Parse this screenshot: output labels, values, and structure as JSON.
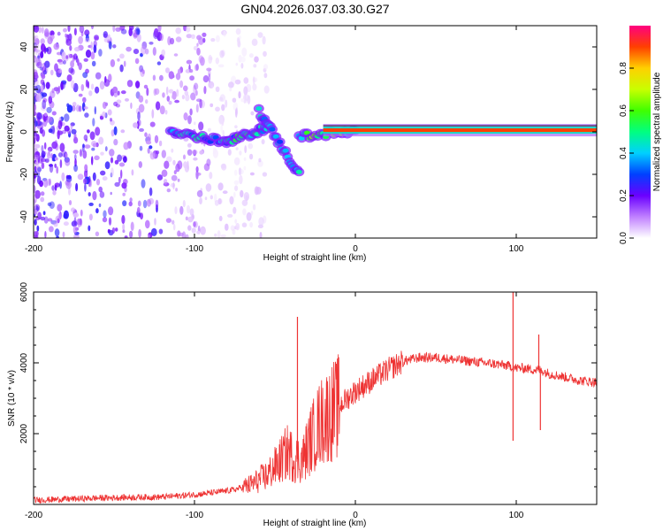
{
  "title": "GN04.2026.037.03.30.G27",
  "chart_data": [
    {
      "type": "heatmap",
      "xlabel": "Height of straight line (km)",
      "ylabel": "Frequency (Hz)",
      "xlim": [
        -200,
        150
      ],
      "ylim": [
        -50,
        50
      ],
      "xticks": [
        -200,
        -100,
        0,
        100
      ],
      "yticks": [
        -40,
        -20,
        0,
        20,
        40
      ],
      "colorbar": {
        "label": "Normalized spectral amplitude",
        "range": [
          0,
          1
        ],
        "ticks": [
          "0.0",
          "0.2",
          "0.4",
          "0.6",
          "0.8"
        ]
      },
      "features": [
        {
          "name": "noise-scatter",
          "x_range": [
            -200,
            -80
          ],
          "freq_range": [
            -50,
            50
          ],
          "amplitude": 0.1
        },
        {
          "name": "ridge-segment",
          "x": [
            -115,
            -80
          ],
          "freq": [
            0,
            -5
          ],
          "amplitude": 0.45
        },
        {
          "name": "ridge-segment",
          "x": [
            -80,
            -55
          ],
          "freq": [
            -5,
            2
          ],
          "amplitude": 0.5
        },
        {
          "name": "branch",
          "x": [
            -60,
            -35
          ],
          "freq": [
            10,
            -20
          ],
          "amplitude": 0.4
        },
        {
          "name": "ridge-segment",
          "x": [
            -35,
            0
          ],
          "freq": [
            -2,
            0
          ],
          "amplitude": 0.6
        },
        {
          "name": "carrier-line",
          "x": [
            -20,
            150
          ],
          "freq": [
            0.8,
            0.8
          ],
          "amplitude": 0.95
        }
      ]
    },
    {
      "type": "line",
      "xlabel": "Height of straight line (km)",
      "ylabel": "SNR (10 * v/v)",
      "xlim": [
        -200,
        150
      ],
      "ylim": [
        0,
        6000
      ],
      "xticks": [
        -200,
        -100,
        0,
        100
      ],
      "yticks": [
        2000,
        4000,
        6000
      ],
      "series": [
        {
          "name": "SNR",
          "color": "#ee3333",
          "x": [
            -200,
            -180,
            -160,
            -140,
            -120,
            -105,
            -95,
            -85,
            -75,
            -65,
            -55,
            -48,
            -42,
            -38,
            -33,
            -28,
            -22,
            -18,
            -12,
            -5,
            0,
            10,
            20,
            30,
            40,
            50,
            60,
            70,
            80,
            90,
            97,
            100,
            105,
            112,
            115,
            120,
            130,
            140,
            150
          ],
          "y": [
            120,
            150,
            180,
            200,
            210,
            260,
            300,
            350,
            420,
            560,
            820,
            1150,
            1500,
            1300,
            1250,
            1800,
            2300,
            2500,
            2700,
            3000,
            3200,
            3500,
            3800,
            4050,
            4150,
            4150,
            4100,
            4050,
            4000,
            3950,
            3900,
            3850,
            3850,
            3800,
            3800,
            3700,
            3600,
            3500,
            3450
          ]
        }
      ],
      "spikes": [
        {
          "x": -36,
          "y": 5300
        },
        {
          "x": 98,
          "y": 6100
        },
        {
          "x": 114,
          "y": 4800
        },
        {
          "x": 98,
          "y": 1800
        },
        {
          "x": 115,
          "y": 2100
        }
      ]
    }
  ]
}
